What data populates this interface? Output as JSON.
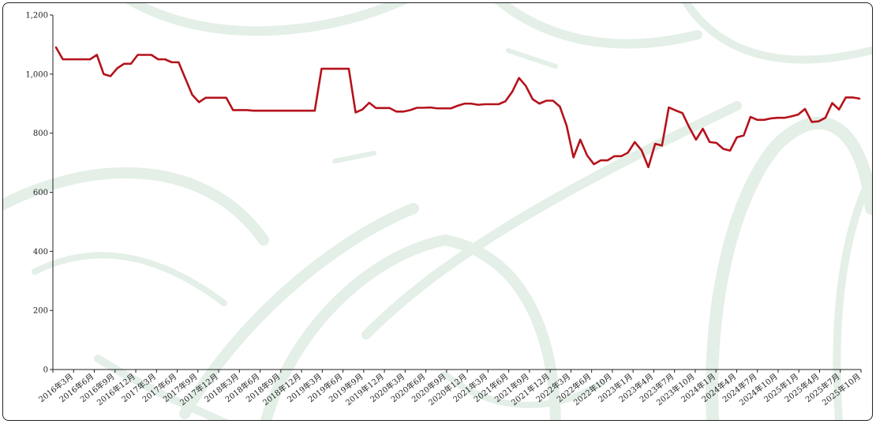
{
  "chart_data": {
    "type": "line",
    "title": "",
    "xlabel": "",
    "ylabel": "",
    "ylim": [
      0,
      1200
    ],
    "y_ticks": [
      0,
      200,
      400,
      600,
      800,
      1000,
      1200
    ],
    "y_tick_labels": [
      "0",
      "200",
      "400",
      "600",
      "800",
      "1,000",
      "1,200"
    ],
    "x_tick_labels": [
      "2016年3月",
      "2016年6月",
      "2016年9月",
      "2016年12月",
      "2017年3月",
      "2017年6月",
      "2017年9月",
      "2017年12月",
      "2018年3月",
      "2018年6月",
      "2018年9月",
      "2018年12月",
      "2019年3月",
      "2019年6月",
      "2019年9月",
      "2019年12月",
      "2020年3月",
      "2020年6月",
      "2020年9月",
      "2020年12月",
      "2021年3月",
      "2021年6月",
      "2021年9月",
      "2021年12月",
      "2022年3月",
      "2022年6月",
      "2022年10月",
      "2023年1月",
      "2023年4月",
      "2023年7月",
      "2023年10月",
      "2024年1月",
      "2024年4月",
      "2024年7月",
      "2024年10月",
      "2025年1月",
      "2025年4月",
      "2025年7月",
      "2025年10月"
    ],
    "grid": false,
    "line_color": "#b5121b",
    "series": [
      {
        "values": [
          1090,
          1050,
          1050,
          1050,
          1050,
          1050,
          1065,
          1000,
          993,
          1020,
          1035,
          1035,
          1065,
          1065,
          1065,
          1050,
          1050,
          1040,
          1040,
          985,
          930,
          905,
          920,
          920,
          920,
          920,
          878,
          878,
          878,
          876,
          876,
          876,
          876,
          876,
          876,
          876,
          876,
          876,
          876,
          1018,
          1018,
          1018,
          1018,
          1018,
          870,
          880,
          903,
          885,
          885,
          885,
          873,
          873,
          878,
          886,
          886,
          887,
          884,
          884,
          884,
          893,
          900,
          900,
          896,
          898,
          898,
          898,
          908,
          940,
          987,
          960,
          915,
          900,
          910,
          910,
          890,
          825,
          718,
          778,
          725,
          695,
          708,
          708,
          722,
          722,
          734,
          770,
          742,
          685,
          764,
          758,
          887,
          877,
          868,
          820,
          778,
          815,
          770,
          767,
          747,
          741,
          786,
          792,
          855,
          845,
          845,
          850,
          852,
          852,
          857,
          863,
          882,
          838,
          840,
          852,
          902,
          880,
          921,
          921,
          917
        ]
      }
    ]
  }
}
